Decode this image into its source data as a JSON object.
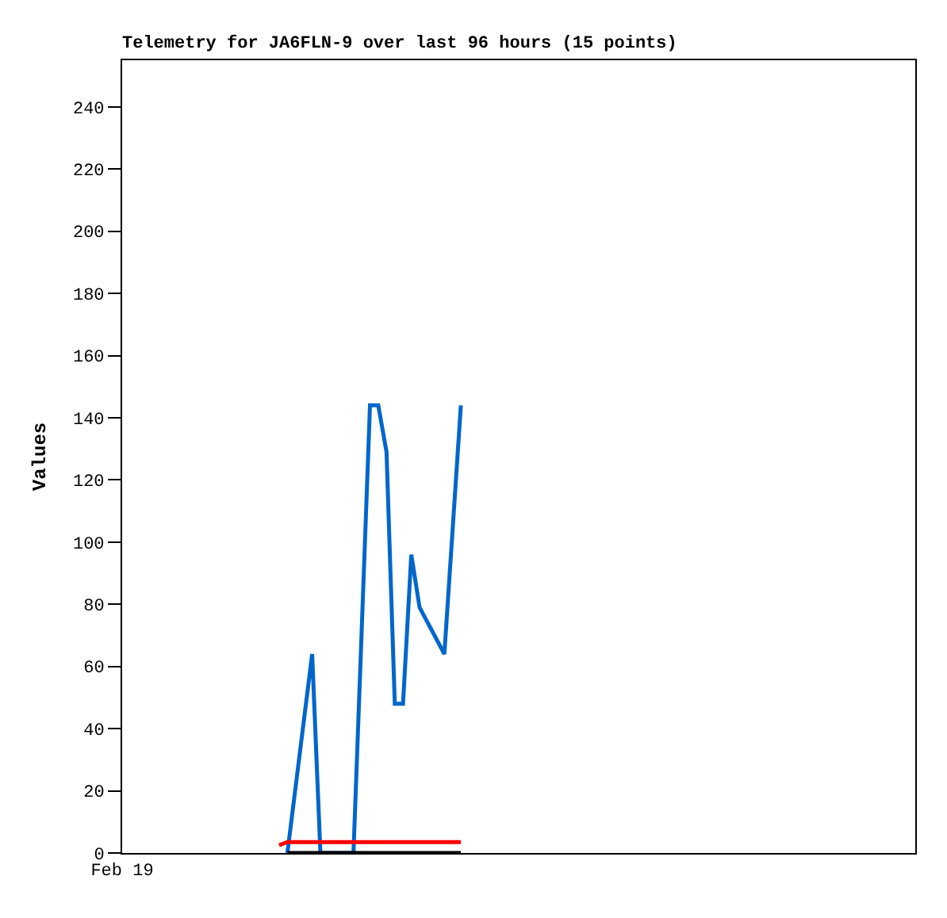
{
  "chart_data": {
    "type": "line",
    "title": "Telemetry for JA6FLN-9 over last 96 hours (15 points)",
    "ylabel": "Values",
    "categories": [
      "Feb 19",
      null,
      null,
      null,
      null,
      null,
      null,
      null,
      null,
      null,
      null,
      null,
      null,
      null,
      null,
      null,
      null,
      null,
      null,
      null,
      null,
      null,
      null,
      null,
      null,
      null,
      null,
      null,
      null,
      null,
      null,
      null,
      null,
      null,
      null,
      null,
      null,
      null,
      null,
      null,
      null,
      null,
      null,
      null,
      null,
      null,
      null,
      null,
      null,
      null,
      null,
      null,
      null,
      null,
      null,
      null,
      null,
      null,
      null,
      null,
      null,
      null,
      null,
      null,
      null,
      null,
      null,
      null,
      null,
      null,
      null,
      null,
      null,
      null,
      null,
      null,
      null,
      null,
      null,
      null,
      null,
      null,
      null,
      null,
      null,
      null,
      null,
      null,
      null,
      null,
      null,
      null,
      null,
      null,
      null,
      null,
      null
    ],
    "ylim": [
      0,
      255
    ],
    "yticks": [
      0,
      20,
      40,
      60,
      80,
      100,
      120,
      140,
      160,
      180,
      200,
      220,
      240
    ],
    "marker": "none",
    "line_style": "solid",
    "series": [
      {
        "color": "#0066cc",
        "values": [
          null,
          null,
          null,
          null,
          null,
          null,
          null,
          null,
          null,
          null,
          null,
          null,
          null,
          null,
          null,
          null,
          null,
          null,
          null,
          null,
          0,
          null,
          null,
          64,
          0,
          null,
          null,
          null,
          0,
          null,
          144,
          144,
          129,
          48,
          48,
          96,
          79,
          null,
          null,
          64,
          null,
          144,
          null,
          null,
          null,
          null,
          null,
          null,
          null,
          null,
          null,
          null,
          null,
          null,
          null,
          null,
          null,
          null,
          null,
          null,
          null,
          null,
          null,
          null,
          null,
          null,
          null,
          null,
          null,
          null,
          null,
          null,
          null,
          null,
          null,
          null,
          null,
          null,
          null,
          null,
          null,
          null,
          null,
          null,
          null,
          null,
          null,
          null,
          null,
          null,
          null,
          null,
          null,
          null,
          null,
          null,
          null
        ]
      },
      {
        "color": "#ff0000",
        "values": [
          null,
          null,
          null,
          null,
          null,
          null,
          null,
          null,
          null,
          null,
          null,
          null,
          null,
          null,
          null,
          null,
          null,
          null,
          null,
          2.5,
          3.5,
          null,
          null,
          null,
          null,
          null,
          null,
          null,
          null,
          null,
          null,
          null,
          null,
          null,
          null,
          null,
          null,
          null,
          null,
          null,
          null,
          3.5,
          null,
          null,
          null,
          null,
          null,
          null,
          null,
          null,
          null,
          null,
          null,
          null,
          null,
          null,
          null,
          null,
          null,
          null,
          null,
          null,
          null,
          null,
          null,
          null,
          null,
          null,
          null,
          null,
          null,
          null,
          null,
          null,
          null,
          null,
          null,
          null,
          null,
          null,
          null,
          null,
          null,
          null,
          null,
          null,
          null,
          null,
          null,
          null,
          null,
          null,
          null,
          null,
          null,
          null,
          null
        ]
      },
      {
        "color": "#000000",
        "values": [
          null,
          null,
          null,
          null,
          null,
          null,
          null,
          null,
          null,
          null,
          null,
          null,
          null,
          null,
          null,
          null,
          null,
          null,
          null,
          null,
          0,
          null,
          null,
          null,
          null,
          null,
          null,
          null,
          null,
          null,
          null,
          null,
          null,
          null,
          null,
          null,
          null,
          null,
          null,
          null,
          null,
          0,
          null,
          null,
          null,
          null,
          null,
          null,
          null,
          null,
          null,
          null,
          null,
          null,
          null,
          null,
          null,
          null,
          null,
          null,
          null,
          null,
          null,
          null,
          null,
          null,
          null,
          null,
          null,
          null,
          null,
          null,
          null,
          null,
          null,
          null,
          null,
          null,
          null,
          null,
          null,
          null,
          null,
          null,
          null,
          null,
          null,
          null,
          null,
          null,
          null,
          null,
          null,
          null,
          null,
          null,
          null
        ]
      }
    ]
  }
}
